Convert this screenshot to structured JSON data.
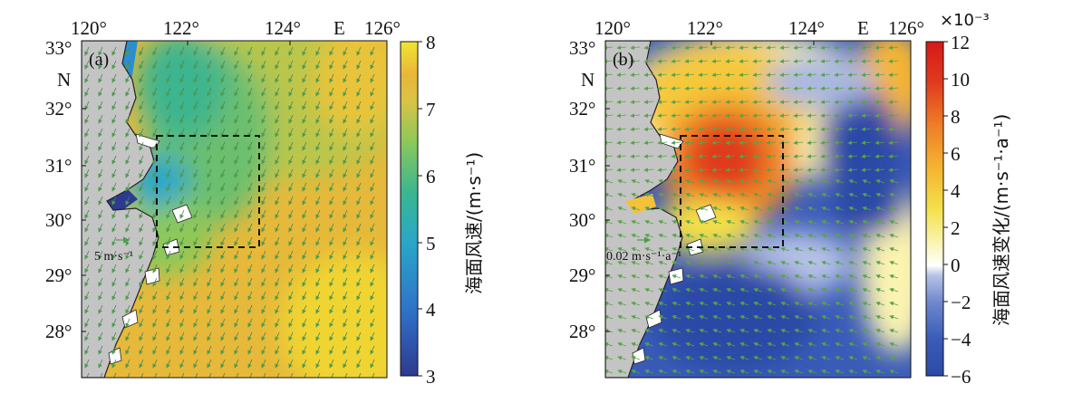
{
  "panels": [
    {
      "id": "a",
      "label": "(a)",
      "lon_ticks": [
        "120°",
        "122°",
        "124°",
        "E",
        "126°"
      ],
      "lat_ticks": [
        "33°",
        "N",
        "32°",
        "31°",
        "30°",
        "29°",
        "28°"
      ],
      "reference_vector": "5 m·s⁻¹",
      "colorbar": {
        "ticks": [
          "8",
          "7",
          "6",
          "5",
          "4",
          "3"
        ],
        "range": [
          3,
          8
        ],
        "label": "海面风速/(m·s⁻¹)",
        "colors": [
          "#2d3a8f",
          "#2f73c9",
          "#2aa7c8",
          "#3bb68f",
          "#8cc85a",
          "#d7c444",
          "#e9b53a",
          "#f0d532"
        ]
      }
    },
    {
      "id": "b",
      "label": "(b)",
      "lon_ticks": [
        "120°",
        "122°",
        "124°",
        "E",
        "126°"
      ],
      "lat_ticks": [
        "33°",
        "N",
        "32°",
        "31°",
        "30°",
        "29°",
        "28°"
      ],
      "reference_vector": "0.02 m·s⁻¹·a⁻¹",
      "colorbar": {
        "exponent": "×10⁻³",
        "ticks": [
          "12",
          "10",
          "8",
          "6",
          "4",
          "2",
          "0",
          "−2",
          "−4",
          "−6"
        ],
        "range": [
          -6,
          12
        ],
        "label": "海面风速变化/(m·s⁻¹·a⁻¹)",
        "colors": [
          "#2b4aa6",
          "#5a78c6",
          "#a9b8e0",
          "#ffffff",
          "#f3e04a",
          "#f5b531",
          "#ef7d27",
          "#e03a1e"
        ]
      }
    }
  ],
  "colors": {
    "land": "#c4c4c4",
    "box": "#000000",
    "arrow": "#4f9c4f"
  }
}
